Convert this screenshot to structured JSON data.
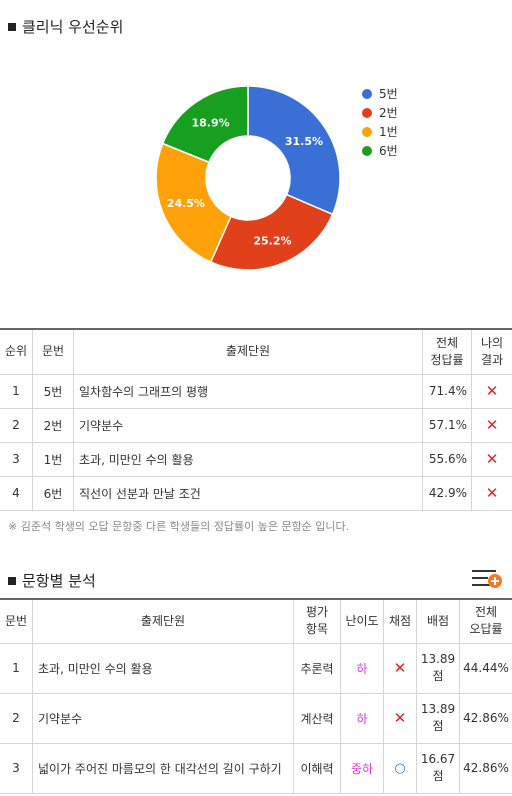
{
  "section1": {
    "title": "클리닉 우선순위"
  },
  "chart_data": {
    "type": "pie",
    "labels": [
      "5번",
      "2번",
      "1번",
      "6번"
    ],
    "values": [
      31.5,
      25.2,
      24.5,
      18.9
    ],
    "value_labels": [
      "31.5%",
      "25.2%",
      "24.5%",
      "18.9%"
    ],
    "colors": [
      "#3a6fd6",
      "#e0401a",
      "#ffa20a",
      "#17a01f"
    ],
    "legend_position": "right"
  },
  "table1": {
    "headers": [
      "순위",
      "문번",
      "출제단원",
      "전체\n정답률",
      "나의\n결과"
    ],
    "rows": [
      {
        "rank": "1",
        "num": "5번",
        "unit": "일차함수의 그래프의 평행",
        "rate": "71.4%",
        "result": "✕"
      },
      {
        "rank": "2",
        "num": "2번",
        "unit": "기약분수",
        "rate": "57.1%",
        "result": "✕"
      },
      {
        "rank": "3",
        "num": "1번",
        "unit": "초과, 미만인 수의 활용",
        "rate": "55.6%",
        "result": "✕"
      },
      {
        "rank": "4",
        "num": "6번",
        "unit": "직선이 선분과 만날 조건",
        "rate": "42.9%",
        "result": "✕"
      }
    ]
  },
  "note": "※ 김준석 학생의 오답 문항중 다른 학생들의 정답률이 높은 문항순 입니다.",
  "section2": {
    "title": "문항별 분석"
  },
  "table2": {
    "headers": [
      "문번",
      "출제단원",
      "평가\n항목",
      "난이도",
      "채점",
      "배점",
      "전체\n오답률"
    ],
    "rows": [
      {
        "num": "1",
        "unit": "초과, 미만인 수의 활용",
        "item": "추론력",
        "diff": "하",
        "mark": "✕",
        "score": "13.89\n점",
        "wrong": "44.44%"
      },
      {
        "num": "2",
        "unit": "기약분수",
        "item": "계산력",
        "diff": "하",
        "mark": "✕",
        "score": "13.89\n점",
        "wrong": "42.86%"
      },
      {
        "num": "3",
        "unit": "넓이가 주어진 마름모의 한 대각선의 길이 구하기",
        "item": "이해력",
        "diff": "중하",
        "mark": "○",
        "score": "16.67\n점",
        "wrong": "42.86%"
      }
    ]
  },
  "icons": {
    "menu": "list-add-icon"
  }
}
